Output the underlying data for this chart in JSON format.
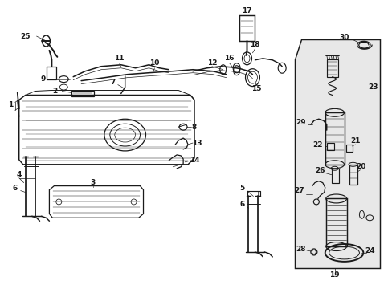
{
  "bg_color": "#ffffff",
  "line_color": "#1a1a1a",
  "fig_width": 4.89,
  "fig_height": 3.6,
  "dpi": 100,
  "lw": 0.7
}
